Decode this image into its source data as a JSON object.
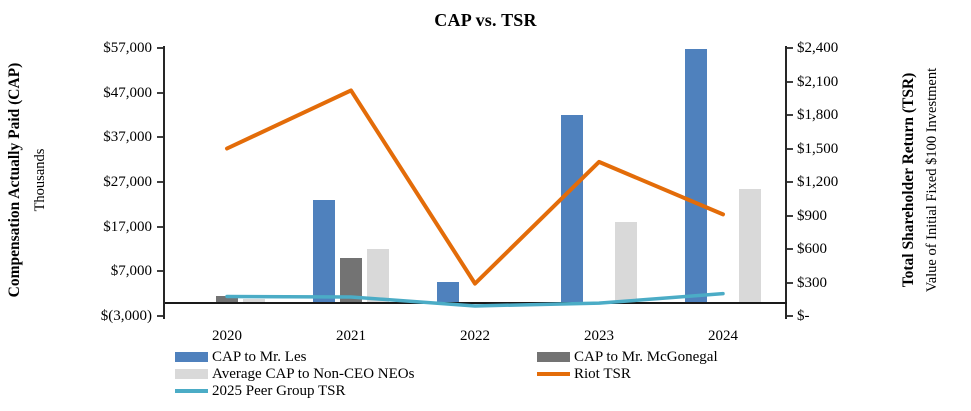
{
  "chart_data": {
    "type": "combo",
    "title": "CAP vs. TSR",
    "categories": [
      "2020",
      "2021",
      "2022",
      "2023",
      "2024"
    ],
    "left_axis": {
      "label": "Compensation Actually Paid (CAP)",
      "sublabel": "Thousands",
      "min": -3000,
      "max": 57000,
      "ticks": [
        {
          "label": "$57,000",
          "value": 57000
        },
        {
          "label": "$47,000",
          "value": 47000
        },
        {
          "label": "$37,000",
          "value": 37000
        },
        {
          "label": "$27,000",
          "value": 27000
        },
        {
          "label": "$17,000",
          "value": 17000
        },
        {
          "label": "$7,000",
          "value": 7000
        },
        {
          "label": "$(3,000)",
          "value": -3000
        }
      ]
    },
    "right_axis": {
      "label": "Total Shareholder Return (TSR)",
      "sublabel": "Value of Initial Fixed $100 Investment",
      "min": 0,
      "max": 2400,
      "ticks": [
        {
          "label": "$2,400",
          "value": 2400
        },
        {
          "label": "$2,100",
          "value": 2100
        },
        {
          "label": "$1,800",
          "value": 1800
        },
        {
          "label": "$1,500",
          "value": 1500
        },
        {
          "label": "$1,200",
          "value": 1200
        },
        {
          "label": "$900",
          "value": 900
        },
        {
          "label": "$600",
          "value": 600
        },
        {
          "label": "$300",
          "value": 300
        },
        {
          "label": "$-",
          "value": 0
        }
      ]
    },
    "series": [
      {
        "name": "CAP to Mr. Les",
        "chart": "bar",
        "axis": "left",
        "slot": 0,
        "color": "#4F81BD",
        "values": [
          null,
          23000,
          4600,
          42000,
          56800
        ]
      },
      {
        "name": "CAP to Mr. McGonegal",
        "chart": "bar",
        "axis": "left",
        "slot": 1,
        "color": "#737373",
        "values": [
          1500,
          10000,
          null,
          null,
          null
        ]
      },
      {
        "name": "Average CAP to Non-CEO NEOs",
        "chart": "bar",
        "axis": "left",
        "slot": 2,
        "color": "#D9D9D9",
        "values": [
          800,
          12000,
          null,
          18000,
          25500
        ]
      },
      {
        "name": "Riot TSR",
        "chart": "line",
        "axis": "right",
        "color": "#E36C09",
        "width": 4,
        "values": [
          1500,
          2020,
          290,
          1380,
          910
        ]
      },
      {
        "name": "2025 Peer Group TSR",
        "chart": "line",
        "axis": "right",
        "color": "#4BACC6",
        "width": 3.5,
        "values": [
          175,
          170,
          90,
          115,
          200
        ]
      }
    ],
    "legend": {
      "columns": [
        {
          "x": 175,
          "items": [
            {
              "label": "CAP to Mr. Les",
              "swatch": "bar",
              "color": "#4F81BD"
            },
            {
              "label": "Average CAP to Non-CEO NEOs",
              "swatch": "bar",
              "color": "#D9D9D9"
            },
            {
              "label": "2025 Peer Group TSR",
              "swatch": "line",
              "color": "#4BACC6"
            }
          ]
        },
        {
          "x": 537,
          "items": [
            {
              "label": "CAP to Mr. McGonegal",
              "swatch": "bar",
              "color": "#737373"
            },
            {
              "label": "Riot TSR",
              "swatch": "line",
              "color": "#E36C09"
            }
          ]
        }
      ]
    }
  }
}
